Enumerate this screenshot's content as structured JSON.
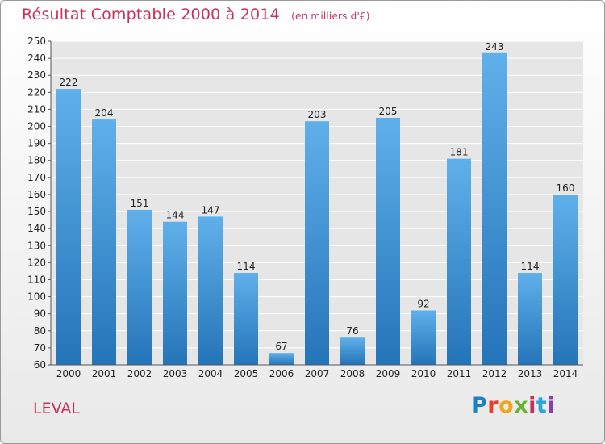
{
  "header": {
    "title": "Résultat Comptable 2000 à 2014",
    "subtitle": "(en milliers d'€)"
  },
  "footer": {
    "place": "LEVAL",
    "logo_letters": [
      "P",
      "r",
      "o",
      "x",
      "i",
      "t",
      "i"
    ],
    "logo_colors": [
      "#1f7fc4",
      "#e8412a",
      "#f2a51a",
      "#66b32e",
      "#c8305a",
      "#2aa6d9",
      "#8a3ea8"
    ]
  },
  "colors": {
    "bar_top": "#5fb0ea",
    "bar_bottom": "#2474b8",
    "grid": "#ffffff",
    "plot_bg": "#e6e6e6"
  },
  "chart_data": {
    "type": "bar",
    "title": "Résultat Comptable 2000 à 2014",
    "subtitle": "(en milliers d'€)",
    "xlabel": "",
    "ylabel": "",
    "categories": [
      "2000",
      "2001",
      "2002",
      "2003",
      "2004",
      "2005",
      "2006",
      "2007",
      "2008",
      "2009",
      "2010",
      "2011",
      "2012",
      "2013",
      "2014"
    ],
    "values": [
      222,
      204,
      151,
      144,
      147,
      114,
      67,
      203,
      76,
      205,
      92,
      181,
      243,
      114,
      160
    ],
    "ylim": [
      60,
      250
    ],
    "ytick_step": 10,
    "grid": true,
    "data_labels": true
  }
}
